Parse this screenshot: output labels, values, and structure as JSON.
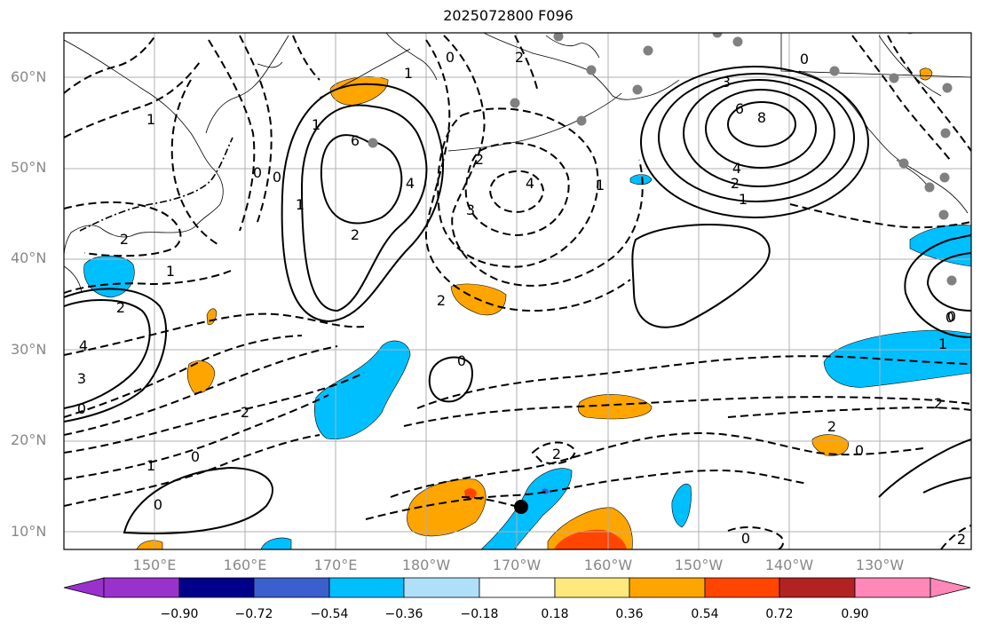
{
  "title": "2025072800 F096",
  "lat_labels": [
    "60°N",
    "50°N",
    "40°N",
    "30°N",
    "20°N",
    "10°N"
  ],
  "lon_labels": [
    "150°E",
    "160°E",
    "170°E",
    "180°W",
    "170°W",
    "160°W",
    "150°W",
    "140°W",
    "130°W"
  ],
  "colorbar": {
    "colors": [
      "#9932cc",
      "#00008b",
      "#3b5fcd",
      "#00bfff",
      "#afe0fa",
      "#ffffff",
      "#ffe87c",
      "#ffa500",
      "#ff4500",
      "#b22222",
      "#ff88b8"
    ],
    "tick_labels": [
      "−0.90",
      "−0.72",
      "−0.54",
      "−0.36",
      "−0.18",
      "0.18",
      "0.36",
      "0.54",
      "0.72",
      "0.90"
    ]
  },
  "contour_labels": [
    "1",
    "0",
    "2",
    "0",
    "1",
    "6",
    "8",
    "4",
    "2",
    "1",
    "3",
    "6",
    "0",
    "1",
    "4",
    "2",
    "0",
    "1",
    "2",
    "2",
    "3",
    "4",
    "2",
    "1",
    "0",
    "0",
    "1",
    "2",
    "0",
    "2",
    "1",
    "0",
    "4",
    "3",
    "2",
    "1",
    "0",
    "0",
    "2",
    "2",
    "0",
    "0",
    "2"
  ],
  "colors": {
    "positive_fill": "#ffa500",
    "positive_strong_fill": "#ff4500",
    "negative_fill": "#00bfff",
    "negative_strong_fill": "#3b5fcd",
    "grid": "#b0b0b0",
    "station_dot": "#808080"
  }
}
